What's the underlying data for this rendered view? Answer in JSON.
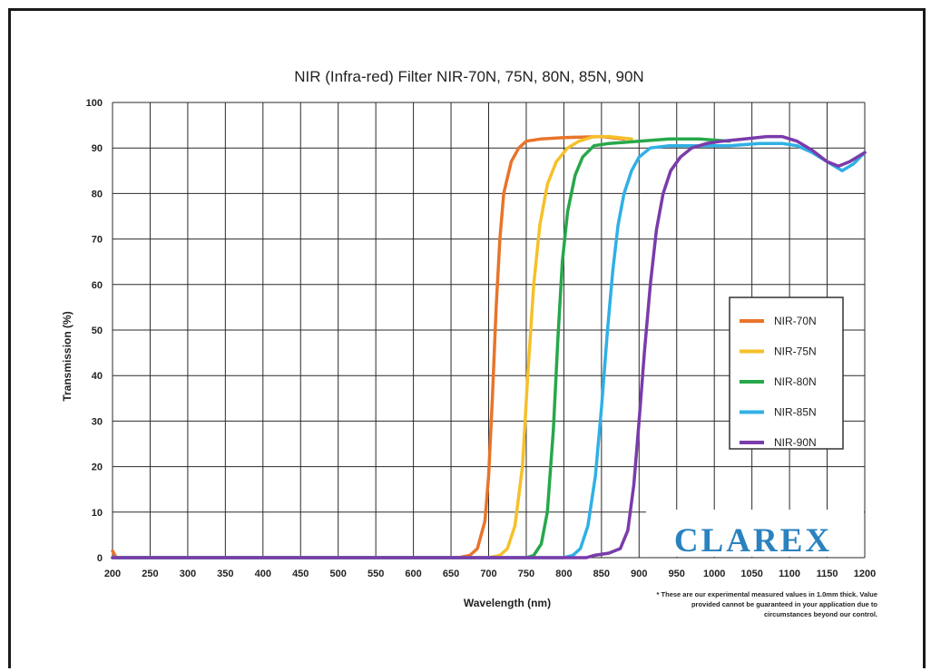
{
  "chart_data": {
    "type": "line",
    "title": "NIR (Infra-red) Filter  NIR-70N, 75N, 80N, 85N, 90N",
    "xlabel": "Wavelength (nm)",
    "ylabel": "Transmission (%)",
    "xlim": [
      200,
      1200
    ],
    "ylim": [
      0,
      100
    ],
    "xticks": [
      200,
      250,
      300,
      350,
      400,
      450,
      500,
      550,
      600,
      650,
      700,
      750,
      800,
      850,
      900,
      950,
      1000,
      1050,
      1100,
      1150,
      1200
    ],
    "yticks": [
      0,
      10,
      20,
      30,
      40,
      50,
      60,
      70,
      80,
      90,
      100
    ],
    "grid": true,
    "legend": "right",
    "series": [
      {
        "name": "NIR-70N",
        "color": "#e8742a",
        "points": [
          [
            200,
            1.5
          ],
          [
            205,
            0
          ],
          [
            660,
            0
          ],
          [
            675,
            0.5
          ],
          [
            685,
            2
          ],
          [
            695,
            8
          ],
          [
            700,
            18
          ],
          [
            705,
            35
          ],
          [
            710,
            55
          ],
          [
            715,
            70
          ],
          [
            720,
            80
          ],
          [
            730,
            87
          ],
          [
            740,
            90
          ],
          [
            750,
            91.5
          ],
          [
            770,
            92
          ],
          [
            800,
            92.3
          ],
          [
            850,
            92.5
          ],
          [
            880,
            92
          ]
        ]
      },
      {
        "name": "NIR-75N",
        "color": "#f5c02a",
        "points": [
          [
            200,
            0
          ],
          [
            700,
            0
          ],
          [
            715,
            0.5
          ],
          [
            725,
            2
          ],
          [
            735,
            7
          ],
          [
            745,
            20
          ],
          [
            752,
            40
          ],
          [
            760,
            60
          ],
          [
            768,
            73
          ],
          [
            778,
            82
          ],
          [
            790,
            87
          ],
          [
            805,
            90
          ],
          [
            820,
            91.5
          ],
          [
            840,
            92.5
          ],
          [
            860,
            92.5
          ],
          [
            890,
            92
          ]
        ]
      },
      {
        "name": "NIR-80N",
        "color": "#26a84a",
        "points": [
          [
            200,
            0
          ],
          [
            750,
            0
          ],
          [
            760,
            0.5
          ],
          [
            770,
            3
          ],
          [
            778,
            10
          ],
          [
            786,
            28
          ],
          [
            792,
            48
          ],
          [
            798,
            65
          ],
          [
            805,
            76
          ],
          [
            815,
            84
          ],
          [
            825,
            88
          ],
          [
            840,
            90.5
          ],
          [
            860,
            91
          ],
          [
            900,
            91.5
          ],
          [
            940,
            92
          ],
          [
            980,
            92
          ],
          [
            1020,
            91.5
          ]
        ]
      },
      {
        "name": "NIR-85N",
        "color": "#2fb0e6",
        "points": [
          [
            200,
            0
          ],
          [
            800,
            0
          ],
          [
            812,
            0.5
          ],
          [
            822,
            2
          ],
          [
            832,
            7
          ],
          [
            842,
            18
          ],
          [
            850,
            33
          ],
          [
            858,
            50
          ],
          [
            865,
            63
          ],
          [
            872,
            73
          ],
          [
            880,
            80
          ],
          [
            890,
            85
          ],
          [
            900,
            88
          ],
          [
            915,
            90
          ],
          [
            940,
            90.5
          ],
          [
            980,
            90.5
          ],
          [
            1020,
            90.5
          ],
          [
            1060,
            91
          ],
          [
            1090,
            91
          ],
          [
            1110,
            90.5
          ],
          [
            1130,
            89
          ],
          [
            1150,
            87
          ],
          [
            1170,
            85
          ],
          [
            1185,
            86.5
          ],
          [
            1200,
            89
          ]
        ]
      },
      {
        "name": "NIR-90N",
        "color": "#7a3bab",
        "points": [
          [
            200,
            0
          ],
          [
            830,
            0
          ],
          [
            840,
            0.5
          ],
          [
            860,
            1
          ],
          [
            875,
            2
          ],
          [
            885,
            6
          ],
          [
            893,
            16
          ],
          [
            900,
            30
          ],
          [
            907,
            45
          ],
          [
            915,
            60
          ],
          [
            923,
            72
          ],
          [
            932,
            80
          ],
          [
            942,
            85
          ],
          [
            955,
            88
          ],
          [
            970,
            90
          ],
          [
            990,
            91
          ],
          [
            1010,
            91.5
          ],
          [
            1040,
            92
          ],
          [
            1070,
            92.5
          ],
          [
            1090,
            92.5
          ],
          [
            1110,
            91.5
          ],
          [
            1130,
            89.5
          ],
          [
            1150,
            87
          ],
          [
            1165,
            86
          ],
          [
            1180,
            87
          ],
          [
            1200,
            89
          ]
        ]
      }
    ],
    "footnote": [
      "* These are our experimental measured values in 1.0mm thick. Value",
      "provided cannot be guaranteed in your application due to",
      "circumstances beyond our control."
    ],
    "brand": "CLAREX"
  }
}
